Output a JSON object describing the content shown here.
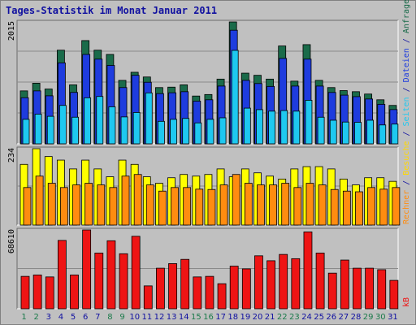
{
  "chart_data": {
    "type": "bar",
    "title": "Tages-Statistik im Monat Januar 2011",
    "categories": [
      "1",
      "2",
      "3",
      "4",
      "5",
      "6",
      "7",
      "8",
      "9",
      "10",
      "11",
      "12",
      "13",
      "14",
      "15",
      "16",
      "17",
      "18",
      "19",
      "20",
      "21",
      "22",
      "23",
      "24",
      "25",
      "26",
      "27",
      "28",
      "29",
      "30",
      "31"
    ],
    "weekend_days": [
      "1",
      "2",
      "8",
      "9",
      "15",
      "16",
      "22",
      "23",
      "29",
      "30"
    ],
    "panels": [
      {
        "id": "hits",
        "max_label": "2015",
        "ymax": 2015,
        "right_labels": [
          "Anfragen",
          "Dateien",
          "Seiten"
        ],
        "series": [
          {
            "name": "Anfragen",
            "color": "#1a6b4a",
            "values": [
              875,
              1002,
              906,
              1548,
              975,
              1707,
              1548,
              1478,
              1049,
              1183,
              1105,
              930,
              937,
              975,
              790,
              815,
              1070,
              2015,
              1168,
              1133,
              1070,
              1618,
              1036,
              1640,
              1049,
              930,
              880,
              862,
              823,
              728,
              635
            ]
          },
          {
            "name": "Dateien",
            "color": "#1e3cde",
            "values": [
              762,
              875,
              794,
              1338,
              850,
              1478,
              1400,
              1296,
              930,
              1133,
              1018,
              830,
              844,
              862,
              705,
              728,
              955,
              1878,
              1049,
              997,
              949,
              1412,
              955,
              1400,
              955,
              849,
              805,
              780,
              741,
              653,
              566
            ]
          },
          {
            "name": "Seiten",
            "color": "#1ec8f0",
            "values": [
              405,
              490,
              455,
              635,
              440,
              761,
              783,
              612,
              445,
              518,
              842,
              372,
              405,
              420,
              346,
              405,
              430,
              1545,
              590,
              565,
              540,
              550,
              540,
              720,
              440,
              390,
              360,
              356,
              390,
              312,
              326
            ]
          }
        ]
      },
      {
        "id": "visits",
        "max_label": "234",
        "ymax": 234,
        "right_labels": [
          "Besuche",
          "Rechner"
        ],
        "series": [
          {
            "name": "Besuche",
            "color": "#ffff00",
            "values": [
              186,
              234,
              210,
              199,
              172,
              199,
              172,
              148,
              199,
              186,
              148,
              128,
              145,
              155,
              150,
              155,
              172,
              148,
              172,
              160,
              150,
              141,
              172,
              179,
              179,
              172,
              141,
              123,
              145,
              145,
              134
            ]
          },
          {
            "name": "Rechner",
            "color": "#ff8c10",
            "values": [
              115,
              150,
              128,
              115,
              123,
              128,
              123,
              115,
              150,
              155,
              123,
              104,
              115,
              115,
              110,
              109,
              123,
              155,
              128,
              123,
              123,
              128,
              115,
              128,
              123,
              109,
              104,
              102,
              115,
              110,
              115
            ]
          }
        ]
      },
      {
        "id": "kb",
        "max_label": "68610",
        "ymax": 68610,
        "right_labels": [
          "kB"
        ],
        "series": [
          {
            "name": "kB",
            "color": "#ee1414",
            "values": [
              28200,
              29400,
              27700,
              59500,
              29400,
              68610,
              48500,
              59200,
              47900,
              63100,
              19900,
              35300,
              39300,
              43000,
              27700,
              28200,
              21800,
              37100,
              34700,
              46100,
              41800,
              47300,
              43600,
              66900,
              48500,
              31000,
              42400,
              35300,
              35300,
              34000,
              24700
            ]
          }
        ]
      }
    ],
    "legend_right": [
      {
        "text": "Anfragen",
        "color": "#1a6b4a"
      },
      {
        "text": "/",
        "color": "#1010a0"
      },
      {
        "text": "Dateien",
        "color": "#1e3cde"
      },
      {
        "text": "/",
        "color": "#1010a0"
      },
      {
        "text": "Seiten",
        "color": "#1ec8f0"
      },
      {
        "text": "/",
        "color": "#1010a0"
      },
      {
        "text": "Besuche",
        "color": "#ffd800"
      },
      {
        "text": "/",
        "color": "#1010a0"
      },
      {
        "text": "Rechner",
        "color": "#ff8c10"
      },
      {
        "text": "kB",
        "color": "#ee1414"
      }
    ],
    "colors": {
      "background": "#c0c0c0",
      "plot_bg": "#c0c0c0",
      "weekend_label": "#1a7a4a",
      "weekday_label": "#1010a0",
      "grid": "#8a8a8a"
    }
  }
}
